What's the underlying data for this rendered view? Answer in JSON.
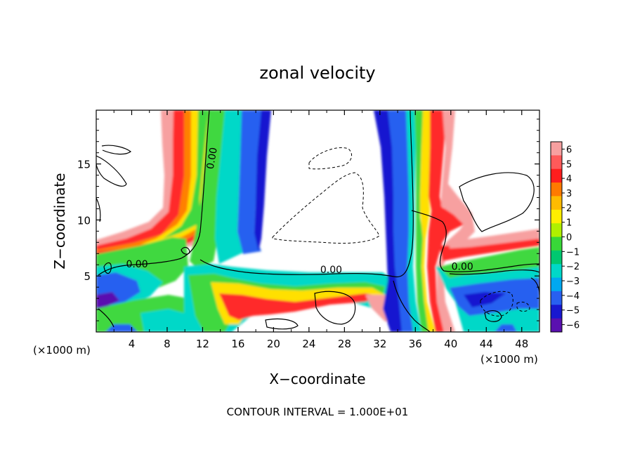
{
  "chart_data": {
    "type": "heatmap",
    "title": "zonal velocity",
    "xlabel": "X−coordinate",
    "ylabel": "Z−coordinate",
    "x_unit_left": "(×1000 m)",
    "x_unit_right": "(×1000 m)",
    "footer": "CONTOUR INTERVAL = 1.000E+01",
    "xlim": [
      0,
      50
    ],
    "ylim": [
      0,
      19.8
    ],
    "x_ticks": [
      4,
      8,
      12,
      16,
      20,
      24,
      28,
      32,
      36,
      40,
      44,
      48
    ],
    "x_tick_labels": [
      "4",
      "8",
      "12",
      "16",
      "20",
      "24",
      "28",
      "32",
      "36",
      "40",
      "44",
      "48"
    ],
    "y_ticks": [
      5,
      10,
      15
    ],
    "y_tick_labels": [
      "5",
      "10",
      "15"
    ],
    "colorbar": {
      "range": [
        -6,
        6
      ],
      "ticks": [
        6,
        5,
        4,
        3,
        2,
        1,
        0,
        -1,
        -2,
        -3,
        -4,
        -5,
        -6
      ],
      "tick_labels": [
        "6",
        "5",
        "4",
        "3",
        "2",
        "1",
        "0",
        "−1",
        "−2",
        "−3",
        "−4",
        "−5",
        "−6"
      ],
      "colors": [
        "#f7a0a0",
        "#ff5a5a",
        "#ff1e1e",
        "#ff7a00",
        "#ffbb00",
        "#ffee00",
        "#b0f000",
        "#38d838",
        "#00c870",
        "#00d8c8",
        "#00a8f0",
        "#2860f0",
        "#1818d0",
        "#5a10b0"
      ]
    },
    "contour_labels": [
      {
        "text": "0.00",
        "x": 13.1,
        "y": 15.5,
        "rotation": -80
      },
      {
        "text": "0.00",
        "x": 4.6,
        "y": 6.0,
        "rotation": 0
      },
      {
        "text": "0.00",
        "x": 26.5,
        "y": 5.5,
        "rotation": 0
      },
      {
        "text": "0.00",
        "x": 41.3,
        "y": 5.8,
        "rotation": 0
      }
    ]
  }
}
